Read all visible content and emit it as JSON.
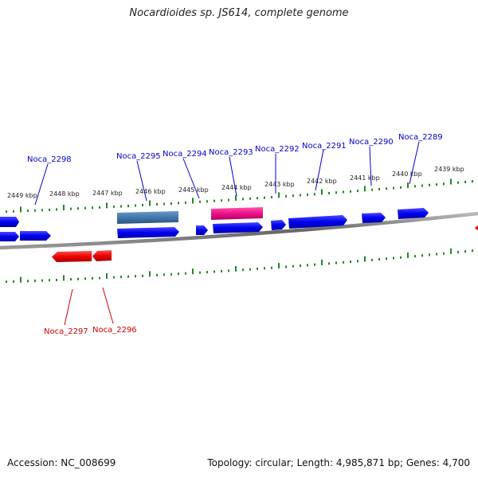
{
  "title": "Nocardioides sp. JS614, complete genome",
  "accession": "Accession: NC_008699",
  "summary": "Topology: circular; Length: 4,985,871 bp; Genes: 4,700",
  "colors": {
    "forward_gene": "#0000ee",
    "forward_label": "#0000cc",
    "reverse_gene": "#ee0000",
    "reverse_label": "#cc0000",
    "highlight_gene": "#ee1188",
    "steel_gene": "#4477aa",
    "ticks": "#228822",
    "backbone": "#777777"
  },
  "scale_labels": [
    "2449 kbp",
    "2448 kbp",
    "2447 kbp",
    "2446 kbp",
    "2445 kbp",
    "2444 kbp",
    "2443 kbp",
    "2442 kbp",
    "2441 kbp",
    "2440 kbp",
    "2439 kbp"
  ],
  "forward_labels": [
    "Noca_2298",
    "Noca_2295",
    "Noca_2294",
    "Noca_2293",
    "Noca_2292",
    "Noca_2291",
    "Noca_2290",
    "Noca_2289"
  ],
  "reverse_labels": [
    "Noca_2297",
    "Noca_2296"
  ]
}
